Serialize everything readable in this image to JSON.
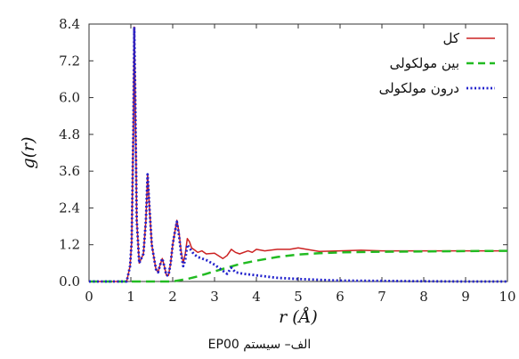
{
  "caption": "الف– سیستم EP00",
  "chart_data": {
    "type": "line",
    "xlabel": "r (Å)",
    "ylabel": "g(r)",
    "xlim": [
      0,
      10
    ],
    "ylim": [
      0,
      8.4
    ],
    "xticks": [
      0,
      1,
      2,
      3,
      4,
      5,
      6,
      7,
      8,
      9,
      10
    ],
    "yticks": [
      0.0,
      1.2,
      2.4,
      3.6,
      4.8,
      6.0,
      7.2,
      8.4
    ],
    "ytick_labels": [
      "0.0",
      "1.2",
      "2.4",
      "3.6",
      "4.8",
      "6.0",
      "7.2",
      "8.4"
    ],
    "xtick_labels": [
      "0",
      "1",
      "2",
      "3",
      "4",
      "5",
      "6",
      "7",
      "8",
      "9",
      "10"
    ],
    "legend_position": "top-right",
    "series": [
      {
        "name": "کل",
        "color": "#cc2222",
        "style": "solid",
        "x": [
          0,
          0.9,
          0.98,
          1.02,
          1.06,
          1.08,
          1.1,
          1.14,
          1.2,
          1.3,
          1.36,
          1.4,
          1.44,
          1.5,
          1.55,
          1.6,
          1.65,
          1.7,
          1.75,
          1.8,
          1.85,
          1.9,
          1.95,
          2.0,
          2.05,
          2.1,
          2.15,
          2.2,
          2.25,
          2.3,
          2.35,
          2.4,
          2.45,
          2.5,
          2.6,
          2.7,
          2.8,
          3.0,
          3.2,
          3.3,
          3.4,
          3.5,
          3.6,
          3.8,
          3.9,
          4.0,
          4.2,
          4.5,
          4.8,
          5.0,
          5.2,
          5.5,
          6.0,
          6.5,
          7.0,
          8.0,
          9.0,
          10.0
        ],
        "y": [
          0,
          0,
          0.5,
          1.3,
          5.0,
          8.3,
          6.5,
          2.0,
          0.6,
          0.9,
          2.0,
          3.5,
          2.5,
          1.2,
          0.8,
          0.4,
          0.3,
          0.55,
          0.75,
          0.5,
          0.2,
          0.2,
          0.6,
          1.2,
          1.6,
          2.0,
          1.6,
          1.0,
          0.6,
          0.9,
          1.4,
          1.3,
          1.1,
          1.05,
          0.95,
          1.0,
          0.9,
          0.92,
          0.75,
          0.85,
          1.05,
          0.95,
          0.9,
          1.0,
          0.95,
          1.05,
          1.0,
          1.05,
          1.05,
          1.1,
          1.05,
          0.98,
          1.0,
          1.02,
          1.0,
          1.0,
          1.0,
          1.0
        ]
      },
      {
        "name": "بین مولکولی",
        "color": "#22bb22",
        "style": "dashed",
        "x": [
          0,
          2.0,
          2.2,
          2.4,
          2.6,
          2.8,
          3.0,
          3.3,
          3.6,
          4.0,
          4.5,
          5.0,
          5.5,
          6.0,
          7.0,
          8.0,
          9.0,
          10.0
        ],
        "y": [
          0,
          0,
          0.05,
          0.1,
          0.17,
          0.25,
          0.33,
          0.45,
          0.57,
          0.68,
          0.8,
          0.88,
          0.92,
          0.95,
          0.97,
          0.98,
          0.99,
          1.0
        ]
      },
      {
        "name": "درون مولکولی",
        "color": "#2222cc",
        "style": "dotted",
        "x": [
          0,
          0.9,
          0.98,
          1.02,
          1.06,
          1.08,
          1.1,
          1.14,
          1.2,
          1.3,
          1.36,
          1.4,
          1.44,
          1.5,
          1.55,
          1.6,
          1.65,
          1.7,
          1.75,
          1.8,
          1.85,
          1.9,
          1.95,
          2.0,
          2.05,
          2.1,
          2.15,
          2.2,
          2.25,
          2.3,
          2.35,
          2.4,
          2.5,
          2.6,
          2.8,
          3.0,
          3.2,
          3.3,
          3.4,
          3.5,
          3.7,
          4.0,
          4.5,
          5.0,
          6.0,
          7.0,
          8.0,
          9.0,
          10.0
        ],
        "y": [
          0,
          0,
          0.5,
          1.3,
          5.0,
          8.3,
          6.5,
          2.0,
          0.6,
          0.9,
          2.0,
          3.5,
          2.5,
          1.2,
          0.8,
          0.4,
          0.3,
          0.55,
          0.75,
          0.5,
          0.2,
          0.2,
          0.6,
          1.2,
          1.6,
          1.95,
          1.5,
          0.9,
          0.5,
          0.7,
          1.2,
          1.1,
          0.9,
          0.8,
          0.7,
          0.55,
          0.35,
          0.25,
          0.45,
          0.3,
          0.25,
          0.2,
          0.12,
          0.08,
          0.03,
          0.02,
          0.01,
          0.0,
          0.0
        ]
      }
    ]
  }
}
